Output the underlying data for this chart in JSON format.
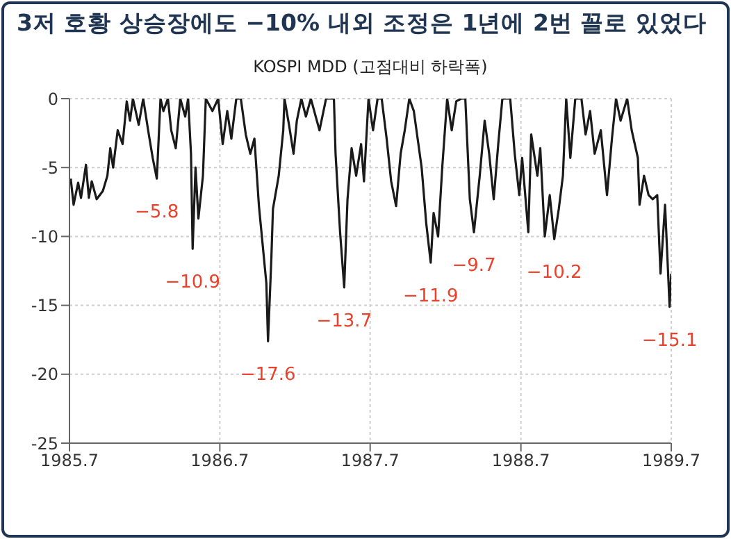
{
  "chart_data": {
    "type": "line",
    "title": "3저 호황 상승장에도 −10% 내외 조정은 1년에 2번 꼴로 있었다",
    "subtitle": "KOSPI MDD (고점대비 하락폭)",
    "series": [
      {
        "color": "#1a1a1a",
        "x": [
          "1985-07-04",
          "1985-07-11",
          "1985-07-22",
          "1985-07-29",
          "1985-08-10",
          "1985-08-17",
          "1985-08-24",
          "1985-09-05",
          "1985-09-20",
          "1985-10-01",
          "1985-10-08",
          "1985-10-15",
          "1985-10-26",
          "1985-11-07",
          "1985-11-17",
          "1985-11-25",
          "1985-12-02",
          "1985-12-16",
          "1985-12-27",
          "1986-01-08",
          "1986-01-19",
          "1986-01-29",
          "1986-02-07",
          "1986-02-14",
          "1986-02-25",
          "1986-03-05",
          "1986-03-16",
          "1986-03-27",
          "1986-04-08",
          "1986-04-15",
          "1986-04-22",
          "1986-04-26",
          "1986-05-03",
          "1986-05-10",
          "1986-05-21",
          "1986-05-28",
          "1986-06-13",
          "1986-06-27",
          "1986-07-08",
          "1986-07-19",
          "1986-07-29",
          "1986-08-10",
          "1986-08-21",
          "1986-09-02",
          "1986-09-13",
          "1986-09-23",
          "1986-10-04",
          "1986-10-22",
          "1986-10-26",
          "1986-11-03",
          "1986-11-07",
          "1986-11-21",
          "1986-12-02",
          "1986-12-05",
          "1986-12-16",
          "1986-12-27",
          "1987-01-04",
          "1987-01-15",
          "1987-01-26",
          "1987-02-07",
          "1987-02-28",
          "1987-03-16",
          "1987-04-04",
          "1987-04-08",
          "1987-04-19",
          "1987-04-29",
          "1987-05-07",
          "1987-05-17",
          "1987-05-28",
          "1987-06-09",
          "1987-06-16",
          "1987-06-27",
          "1987-07-08",
          "1987-07-19",
          "1987-07-29",
          "1987-08-10",
          "1987-08-21",
          "1987-09-02",
          "1987-09-13",
          "1987-09-23",
          "1987-10-04",
          "1987-10-15",
          "1987-11-03",
          "1987-11-14",
          "1987-11-25",
          "1987-12-02",
          "1987-12-13",
          "1987-12-23",
          "1988-01-04",
          "1988-01-15",
          "1988-01-26",
          "1988-02-07",
          "1988-02-17",
          "1988-02-28",
          "1988-03-09",
          "1988-03-23",
          "1988-04-04",
          "1988-04-15",
          "1988-04-26",
          "1988-05-07",
          "1988-05-17",
          "1988-06-05",
          "1988-06-16",
          "1988-06-27",
          "1988-07-04",
          "1988-07-19",
          "1988-07-26",
          "1988-08-10",
          "1988-08-17",
          "1988-08-28",
          "1988-09-09",
          "1988-09-20",
          "1988-10-01",
          "1988-10-11",
          "1988-10-19",
          "1988-10-29",
          "1988-11-10",
          "1988-11-25",
          "1988-12-05",
          "1988-12-16",
          "1988-12-27",
          "1989-01-11",
          "1989-01-26",
          "1989-02-07",
          "1989-02-17",
          "1989-02-28",
          "1989-03-16",
          "1989-03-27",
          "1989-04-11",
          "1989-04-15",
          "1989-04-26",
          "1989-05-07",
          "1989-05-17",
          "1989-05-28",
          "1989-06-05",
          "1989-06-16",
          "1989-06-23",
          "1989-06-27",
          "1989-07-01"
        ],
        "values": [
          -5.8,
          -7.7,
          -6.1,
          -7.2,
          -4.8,
          -7.2,
          -6.0,
          -7.3,
          -6.7,
          -5.6,
          -3.6,
          -5.0,
          -2.3,
          -3.3,
          -0.2,
          -1.6,
          0,
          -1.9,
          0,
          -2.3,
          -4.3,
          -5.8,
          0,
          -0.9,
          0,
          -2.3,
          -3.6,
          0,
          -1.3,
          0,
          -4.0,
          -10.9,
          -5.0,
          -8.7,
          -5.6,
          0,
          -0.9,
          0,
          -3.3,
          -0.9,
          -2.9,
          0,
          0,
          -2.6,
          -4.0,
          -2.9,
          -7.8,
          -13.4,
          -17.6,
          -11.7,
          -8.0,
          -5.6,
          -2.3,
          0,
          -1.9,
          -4.0,
          -1.6,
          0,
          -1.3,
          0,
          -2.3,
          0,
          0,
          -4.0,
          -9.7,
          -13.7,
          -7.3,
          -3.6,
          -5.6,
          -3.3,
          -6.0,
          0,
          -2.3,
          0,
          0,
          -2.9,
          -6.0,
          -7.8,
          -4.0,
          -2.3,
          0,
          -0.9,
          -5.0,
          -9.0,
          -11.9,
          -8.3,
          -10.0,
          -5.0,
          0,
          -2.3,
          -0.2,
          0,
          0,
          -7.3,
          -9.7,
          -5.6,
          -1.6,
          -4.0,
          -7.3,
          -3.3,
          0,
          0,
          -4.0,
          -7.0,
          -4.3,
          -9.7,
          -2.6,
          -5.6,
          -3.6,
          -10.0,
          -7.0,
          -10.2,
          -8.0,
          -5.6,
          0,
          -4.3,
          0,
          0,
          -2.6,
          -0.9,
          -4.0,
          -2.3,
          -7.0,
          -2.9,
          0,
          -1.6,
          0,
          -2.3,
          -4.3,
          -7.7,
          -5.6,
          -7.0,
          -7.3,
          -7.0,
          -12.7,
          -7.7,
          -12.4,
          -15.1,
          -12.7
        ]
      }
    ],
    "xlim": [
      "1985-07-01",
      "1989-07-01"
    ],
    "xticks": [
      {
        "value": "1985-07",
        "label": "1985.7"
      },
      {
        "value": "1986-07",
        "label": "1986.7"
      },
      {
        "value": "1987-07",
        "label": "1987.7"
      },
      {
        "value": "1988-07",
        "label": "1988.7"
      },
      {
        "value": "1989-07",
        "label": "1989.7"
      }
    ],
    "ylim": [
      -25,
      0
    ],
    "yticks": [
      -25,
      -20,
      -15,
      -10,
      -5,
      0
    ],
    "grid": true,
    "legend": false,
    "marker": "none",
    "annotations": [
      {
        "text": "−5.8",
        "x": "1986-01-29",
        "y": -5.8
      },
      {
        "text": "−10.9",
        "x": "1986-04-26",
        "y": -10.9
      },
      {
        "text": "−17.6",
        "x": "1986-10-26",
        "y": -17.6
      },
      {
        "text": "−13.7",
        "x": "1987-04-29",
        "y": -13.7
      },
      {
        "text": "−11.9",
        "x": "1987-11-25",
        "y": -11.9
      },
      {
        "text": "−9.7",
        "x": "1988-03-09",
        "y": -9.7
      },
      {
        "text": "−10.2",
        "x": "1988-09-20",
        "y": -10.2
      },
      {
        "text": "−15.1",
        "x": "1989-06-27",
        "y": -15.1
      }
    ]
  }
}
